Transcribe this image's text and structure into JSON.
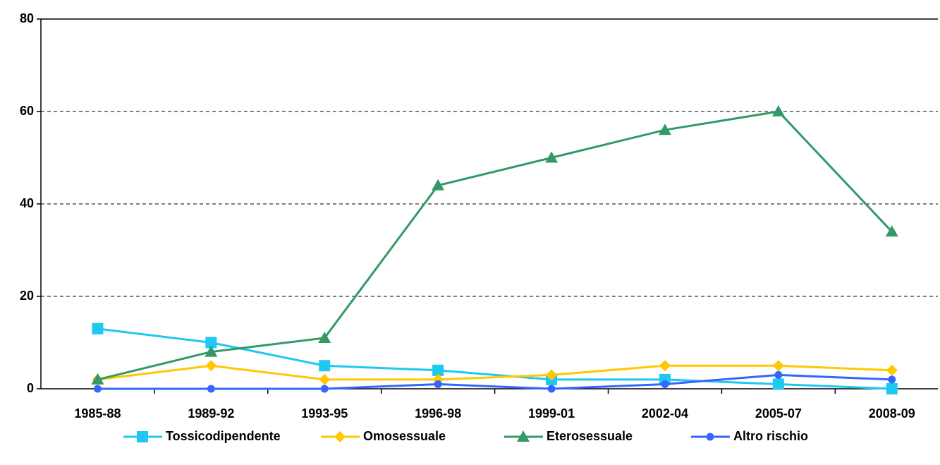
{
  "chart_data": {
    "type": "line",
    "categories": [
      "1985-88",
      "1989-92",
      "1993-95",
      "1996-98",
      "1999-01",
      "2002-04",
      "2005-07",
      "2008-09"
    ],
    "series": [
      {
        "name": "Tossicodipendente",
        "color": "#1ec8f0",
        "marker": "square",
        "values": [
          13,
          10,
          5,
          4,
          2,
          2,
          1,
          0
        ]
      },
      {
        "name": "Omosessuale",
        "color": "#ffc800",
        "marker": "diamond",
        "values": [
          2,
          5,
          2,
          2,
          3,
          5,
          5,
          4
        ]
      },
      {
        "name": "Eterosessuale",
        "color": "#339966",
        "marker": "triangle",
        "values": [
          2,
          8,
          11,
          44,
          50,
          56,
          60,
          34
        ]
      },
      {
        "name": "Altro rischio",
        "color": "#3366ff",
        "marker": "circle",
        "values": [
          0,
          0,
          0,
          1,
          0,
          1,
          3,
          2
        ]
      }
    ],
    "ylim": [
      0,
      80
    ],
    "yticks": [
      0,
      20,
      40,
      60,
      80
    ],
    "grid": true,
    "legend": "bottom"
  }
}
